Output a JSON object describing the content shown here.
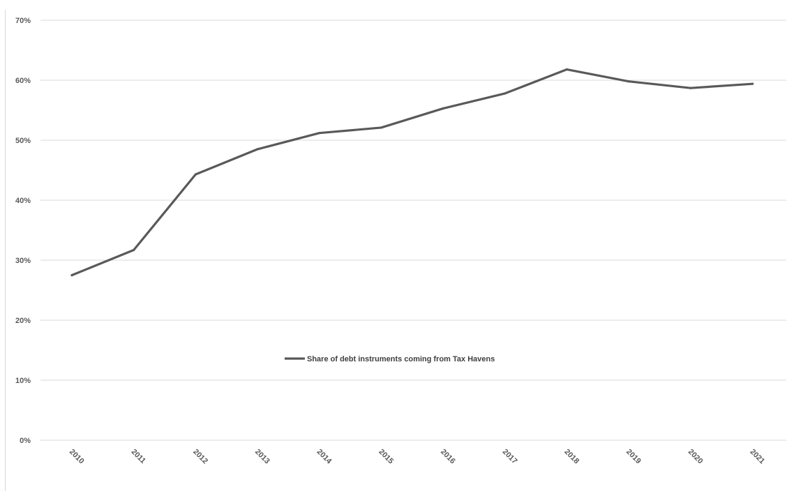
{
  "chart_data": {
    "type": "line",
    "title": "",
    "xlabel": "",
    "ylabel": "",
    "categories": [
      "2010",
      "2011",
      "2012",
      "2013",
      "2014",
      "2015",
      "2016",
      "2017",
      "2018",
      "2019",
      "2020",
      "2021"
    ],
    "series": [
      {
        "name": "Share of debt instruments coming from Tax Havens",
        "values": [
          27.5,
          31.7,
          44.3,
          48.5,
          51.2,
          52.1,
          55.3,
          57.8,
          61.8,
          59.8,
          58.7,
          59.4
        ],
        "color": "#595959"
      }
    ],
    "ylim": [
      0,
      70
    ],
    "yticks": [
      0,
      10,
      20,
      30,
      40,
      50,
      60,
      70
    ],
    "ytick_labels": [
      "0%",
      "10%",
      "20%",
      "30%",
      "40%",
      "50%",
      "60%",
      "70%"
    ],
    "grid": true,
    "legend_position": "center",
    "colors": {
      "gridline": "#d9d9d9",
      "line": "#595959",
      "tick_text": "#595959"
    }
  }
}
